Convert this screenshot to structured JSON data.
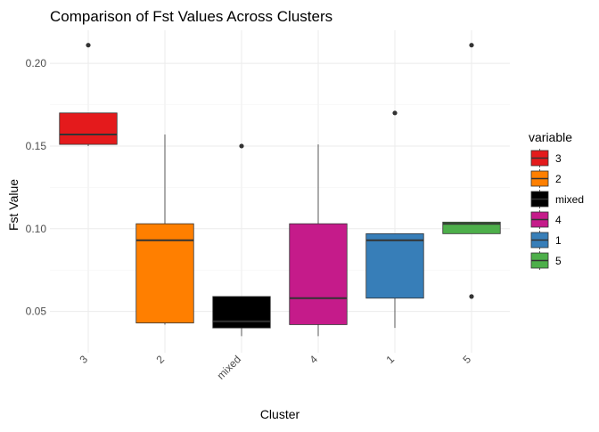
{
  "chart_data": {
    "type": "boxplot",
    "title": "Comparison of Fst Values Across Clusters",
    "xlabel": "Cluster",
    "ylabel": "Fst Value",
    "ylim": [
      0.025,
      0.22
    ],
    "yticks": [
      0.05,
      0.1,
      0.15,
      0.2
    ],
    "ytick_labels": [
      "0.05",
      "0.10",
      "0.15",
      "0.20"
    ],
    "grid": true,
    "legend": {
      "title": "variable",
      "position": "right"
    },
    "categories": [
      "3",
      "2",
      "mixed",
      "4",
      "1",
      "5"
    ],
    "boxes": [
      {
        "name": "3",
        "color": "#E41A1C",
        "whisker_low": 0.15,
        "q1": 0.151,
        "median": 0.157,
        "q3": 0.17,
        "whisker_high": 0.17,
        "outliers": [
          0.211
        ]
      },
      {
        "name": "2",
        "color": "#FF7F00",
        "whisker_low": 0.042,
        "q1": 0.043,
        "median": 0.093,
        "q3": 0.103,
        "whisker_high": 0.157,
        "outliers": []
      },
      {
        "name": "mixed",
        "color": "#000000",
        "whisker_low": 0.035,
        "q1": 0.04,
        "median": 0.044,
        "q3": 0.059,
        "whisker_high": 0.059,
        "outliers": [
          0.15
        ]
      },
      {
        "name": "4",
        "color": "#C51B8A",
        "whisker_low": 0.035,
        "q1": 0.042,
        "median": 0.058,
        "q3": 0.103,
        "whisker_high": 0.151,
        "outliers": []
      },
      {
        "name": "1",
        "color": "#377EB8",
        "whisker_low": 0.04,
        "q1": 0.058,
        "median": 0.093,
        "q3": 0.097,
        "whisker_high": 0.097,
        "outliers": [
          0.17
        ]
      },
      {
        "name": "5",
        "color": "#4DAF4A",
        "whisker_low": 0.097,
        "q1": 0.097,
        "median": 0.103,
        "q3": 0.104,
        "whisker_high": 0.104,
        "outliers": [
          0.059,
          0.211
        ]
      }
    ]
  }
}
